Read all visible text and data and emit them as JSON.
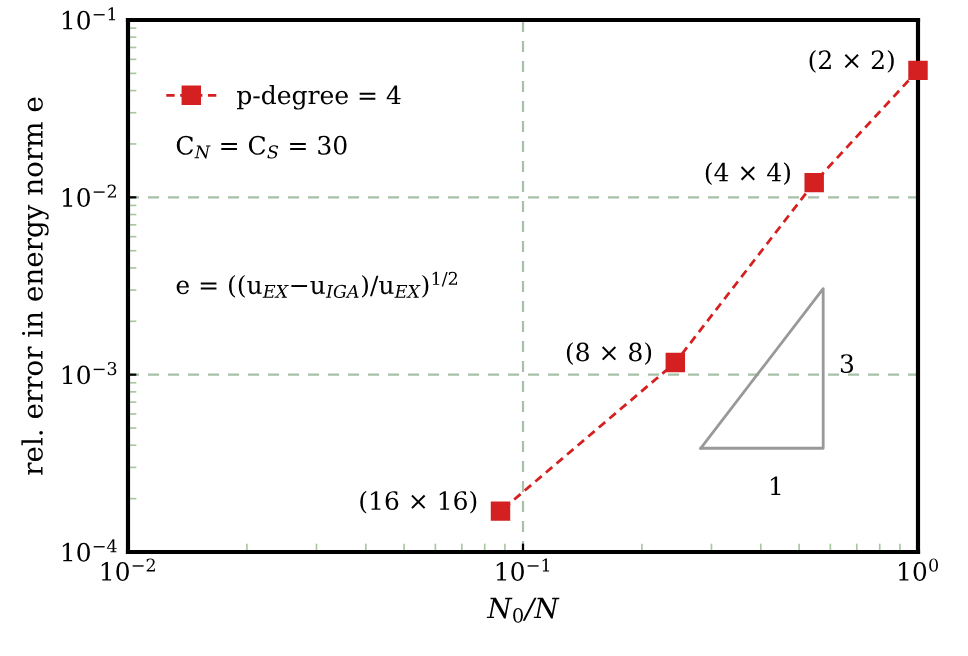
{
  "chart_data": {
    "type": "line",
    "xlabel": "N$_{0}$/N",
    "ylabel": "rel. error in energy norm e",
    "log": "xy",
    "x": [
      1.0,
      0.546,
      0.243,
      0.0877
    ],
    "series": [
      {
        "name": "p-degree = 4",
        "color": "#d42020",
        "values": [
          0.052,
          0.0121,
          0.00117,
          0.00017
        ]
      }
    ],
    "xlim": [
      0.01,
      1
    ],
    "ylim": [
      0.0001,
      0.1
    ],
    "xticks": [
      {
        "value": 0.01,
        "label": "10$^{−2}$"
      },
      {
        "value": 0.1,
        "label": "10$^{−1}$"
      },
      {
        "value": 1,
        "label": "10$^{0}$"
      }
    ],
    "yticks": [
      {
        "value": 0.0001,
        "label": "10$^{−4}$"
      },
      {
        "value": 0.001,
        "label": "10$^{−3}$"
      },
      {
        "value": 0.01,
        "label": "10$^{−2}$"
      },
      {
        "value": 0.1,
        "label": "10$^{−1}$"
      }
    ],
    "grid": true,
    "legend": "top left",
    "marker": "square",
    "line_style": "dashed",
    "annotations": [
      {
        "text": "(2 × 2)",
        "x": 1.0,
        "y": 0.052
      },
      {
        "text": "(4 × 4)",
        "x": 0.546,
        "y": 0.0121
      },
      {
        "text": "(8 × 8)",
        "x": 0.243,
        "y": 0.00117
      },
      {
        "text": "(16 × 16)",
        "x": 0.0877,
        "y": 0.00017
      },
      "C$_{N}$ = C$_{S}$ = 30",
      "e = ((u$_{EX}$−u$_{IGA}$)/u$_{EX}$)$^{1/2}$",
      "1",
      "3"
    ]
  }
}
